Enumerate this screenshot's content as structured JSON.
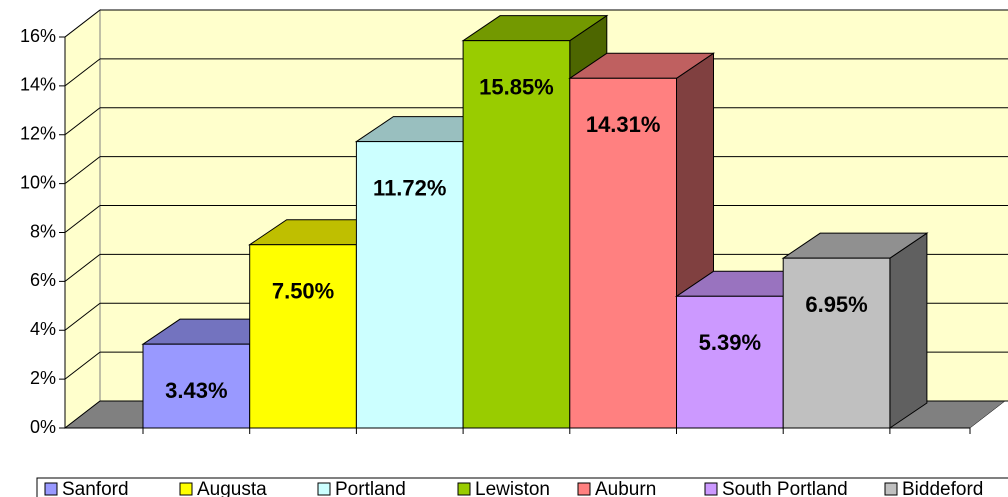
{
  "chart_data": {
    "type": "bar",
    "categories": [
      "Sanford",
      "Augusta",
      "Portland",
      "Lewiston",
      "Auburn",
      "South Portland",
      "Biddeford"
    ],
    "values": [
      3.43,
      7.5,
      11.72,
      15.85,
      14.31,
      5.39,
      6.95
    ],
    "value_labels": [
      "3.43%",
      "7.50%",
      "11.72%",
      "15.85%",
      "14.31%",
      "5.39%",
      "6.95%"
    ],
    "colors": [
      "#9999ff",
      "#ffff00",
      "#ccffff",
      "#99cc00",
      "#ff8080",
      "#cc99ff",
      "#c0c0c0"
    ],
    "ylim": [
      0,
      16
    ],
    "yticks": [
      {
        "value": 0,
        "label": "0%"
      },
      {
        "value": 2,
        "label": "2%"
      },
      {
        "value": 4,
        "label": "4%"
      },
      {
        "value": 6,
        "label": "6%"
      },
      {
        "value": 8,
        "label": "8%"
      },
      {
        "value": 10,
        "label": "10%"
      },
      {
        "value": 12,
        "label": "12%"
      },
      {
        "value": 14,
        "label": "14%"
      },
      {
        "value": 16,
        "label": "16%"
      }
    ],
    "grid": true,
    "legend": "bottom"
  }
}
